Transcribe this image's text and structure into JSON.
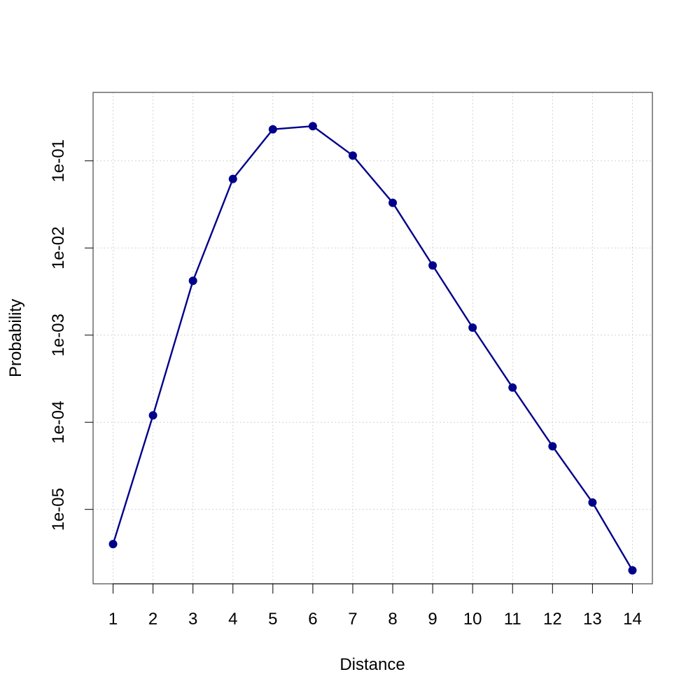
{
  "chart_data": {
    "type": "line",
    "title": "",
    "xlabel": "Distance",
    "ylabel": "Probability",
    "y_scale": "log",
    "grid": true,
    "xlim": [
      0.5,
      14.5
    ],
    "ylim": [
      1.4e-06,
      0.61
    ],
    "x_ticks": [
      "1",
      "2",
      "3",
      "4",
      "5",
      "6",
      "7",
      "8",
      "9",
      "10",
      "11",
      "12",
      "13",
      "14"
    ],
    "y_ticks": [
      {
        "value": 1e-05,
        "label": "1e-05"
      },
      {
        "value": 0.0001,
        "label": "1e-04"
      },
      {
        "value": 0.001,
        "label": "1e-03"
      },
      {
        "value": 0.01,
        "label": "1e-02"
      },
      {
        "value": 0.1,
        "label": "1e-01"
      }
    ],
    "series": [
      {
        "color": "#00008B",
        "x": [
          1,
          2,
          3,
          4,
          5,
          6,
          7,
          8,
          9,
          10,
          11,
          12,
          13,
          14
        ],
        "values": [
          4e-06,
          0.00012,
          0.0042,
          0.062,
          0.23,
          0.25,
          0.115,
          0.033,
          0.0063,
          0.00122,
          0.00025,
          5.3e-05,
          1.2e-05,
          2e-06
        ]
      }
    ]
  }
}
